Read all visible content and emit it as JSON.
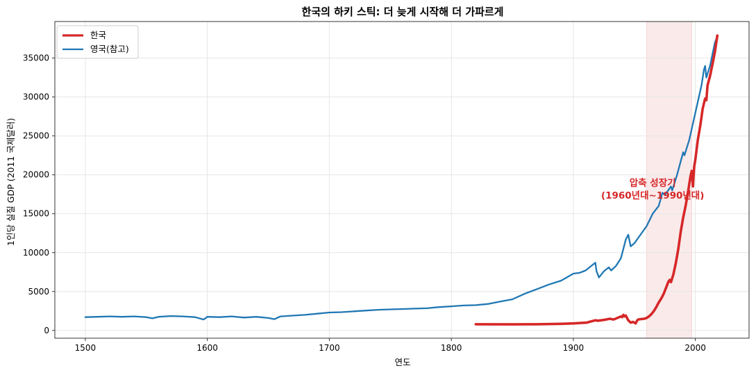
{
  "chart_data": {
    "type": "line",
    "title": "한국의 하키 스틱: 더 늦게 시작해 더 가파르게",
    "xlabel": "연도",
    "ylabel": "1인당 실질 GDP (2011 국제달러)",
    "xlim": [
      1475,
      2044
    ],
    "ylim": [
      -1000,
      39700
    ],
    "x_ticks": [
      1500,
      1600,
      1700,
      1800,
      1900,
      2000
    ],
    "y_ticks": [
      0,
      5000,
      10000,
      15000,
      20000,
      25000,
      30000,
      35000
    ],
    "grid": true,
    "legend": {
      "placement": "top-left"
    },
    "highlight": {
      "x_range": [
        1960,
        1997
      ],
      "color": "#f6d5d5",
      "label_lines": [
        "압축 성장기",
        "(1960년대~1990년대)"
      ]
    },
    "series": [
      {
        "name": "한국",
        "color": "#d62728",
        "x": [
          1820,
          1850,
          1870,
          1890,
          1900,
          1911,
          1913,
          1918,
          1920,
          1925,
          1930,
          1933,
          1936,
          1939,
          1940,
          1941,
          1942,
          1943,
          1945,
          1947,
          1949,
          1950,
          1951,
          1952,
          1953,
          1955,
          1958,
          1960,
          1962,
          1964,
          1966,
          1968,
          1970,
          1972,
          1974,
          1976,
          1978,
          1979,
          1980,
          1982,
          1984,
          1986,
          1988,
          1990,
          1992,
          1994,
          1996,
          1997,
          1998,
          1999,
          2000,
          2002,
          2004,
          2006,
          2008,
          2009,
          2010,
          2012,
          2014,
          2016,
          2018
        ],
        "y": [
          790,
          780,
          790,
          850,
          900,
          1000,
          1100,
          1300,
          1250,
          1350,
          1500,
          1400,
          1600,
          1800,
          1700,
          2000,
          1800,
          1900,
          1300,
          1000,
          1100,
          1000,
          900,
          1200,
          1400,
          1450,
          1500,
          1600,
          1800,
          2100,
          2500,
          3000,
          3600,
          4100,
          4700,
          5500,
          6300,
          6500,
          6200,
          7200,
          8700,
          10500,
          12700,
          14500,
          16000,
          17800,
          19800,
          20500,
          18500,
          21000,
          22000,
          24500,
          26300,
          28500,
          29800,
          29600,
          31500,
          32700,
          34200,
          35800,
          37900
        ]
      },
      {
        "name": "영국(참고)",
        "color": "#1f77b4",
        "x": [
          1500,
          1510,
          1520,
          1530,
          1540,
          1550,
          1555,
          1560,
          1570,
          1580,
          1590,
          1597,
          1600,
          1610,
          1620,
          1630,
          1640,
          1650,
          1655,
          1660,
          1670,
          1680,
          1690,
          1700,
          1710,
          1720,
          1730,
          1740,
          1750,
          1760,
          1770,
          1780,
          1790,
          1800,
          1810,
          1820,
          1830,
          1840,
          1850,
          1860,
          1870,
          1880,
          1890,
          1900,
          1905,
          1910,
          1914,
          1918,
          1919,
          1921,
          1925,
          1929,
          1931,
          1935,
          1937,
          1939,
          1943,
          1945,
          1947,
          1950,
          1955,
          1960,
          1965,
          1970,
          1973,
          1975,
          1980,
          1981,
          1985,
          1990,
          1991,
          1995,
          2000,
          2005,
          2007,
          2008,
          2009,
          2010,
          2012,
          2014,
          2016,
          2018
        ],
        "y": [
          1700,
          1750,
          1800,
          1750,
          1800,
          1700,
          1550,
          1750,
          1850,
          1800,
          1700,
          1400,
          1750,
          1700,
          1800,
          1650,
          1750,
          1600,
          1450,
          1800,
          1900,
          2000,
          2150,
          2300,
          2350,
          2450,
          2550,
          2650,
          2700,
          2750,
          2800,
          2850,
          3000,
          3100,
          3200,
          3250,
          3400,
          3700,
          4000,
          4700,
          5300,
          5900,
          6400,
          7300,
          7400,
          7700,
          8200,
          8700,
          7600,
          6800,
          7600,
          8100,
          7700,
          8300,
          8800,
          9300,
          11700,
          12300,
          10800,
          11200,
          12300,
          13400,
          15000,
          16000,
          17700,
          17400,
          18500,
          18000,
          20000,
          22900,
          22500,
          24500,
          28000,
          31500,
          33500,
          34000,
          32500,
          33000,
          34000,
          35500,
          37000,
          37800
        ]
      }
    ]
  }
}
